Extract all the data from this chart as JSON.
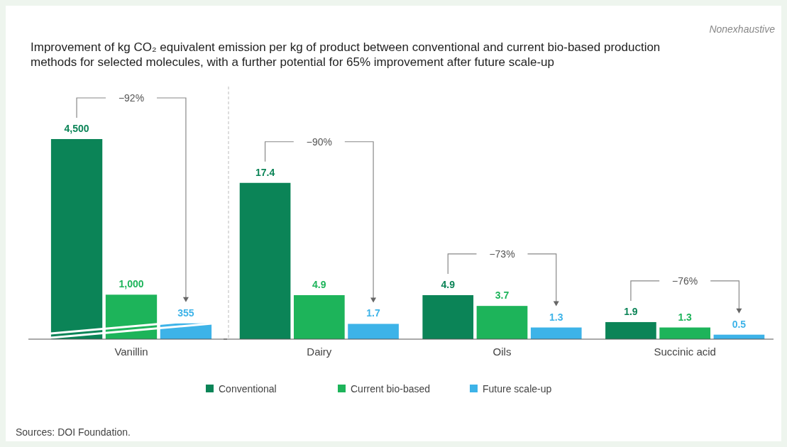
{
  "chart_data": [
    {
      "type": "bar",
      "title": "Improvement of kg CO₂ equivalent emission per kg of product between conventional and current bio-based production methods for selected molecules, with a further potential for 65% improvement after future scale-up",
      "xlabel": "Vanillin",
      "categories": [
        null,
        null,
        null
      ],
      "values": [
        4500,
        1000,
        355
      ],
      "colors": [
        "#0b8457",
        "#1db45a",
        "#3db3e8"
      ],
      "value_labels": [
        "4,500",
        "1,000",
        "355"
      ],
      "annotations": [
        "−92%",
        "Sources: DOI Foundation."
      ]
    },
    {
      "type": "bar",
      "categories": [
        "Dairy",
        "Oils",
        "Succinic acid"
      ],
      "series": [
        {
          "name": "Conventional",
          "color": "#0b8457",
          "values": [
            17.4,
            4.9,
            1.9
          ]
        },
        {
          "name": "Current bio-based",
          "color": "#1db45a",
          "values": [
            4.9,
            3.7,
            1.3
          ]
        },
        {
          "name": "Future scale-up",
          "color": "#3db3e8",
          "values": [
            1.7,
            1.3,
            0.5
          ]
        }
      ],
      "data_labels": true,
      "legend": "bottom",
      "annotations": [
        "−90%",
        "−73%",
        "−76%",
        "Nonexhaustive"
      ]
    }
  ]
}
